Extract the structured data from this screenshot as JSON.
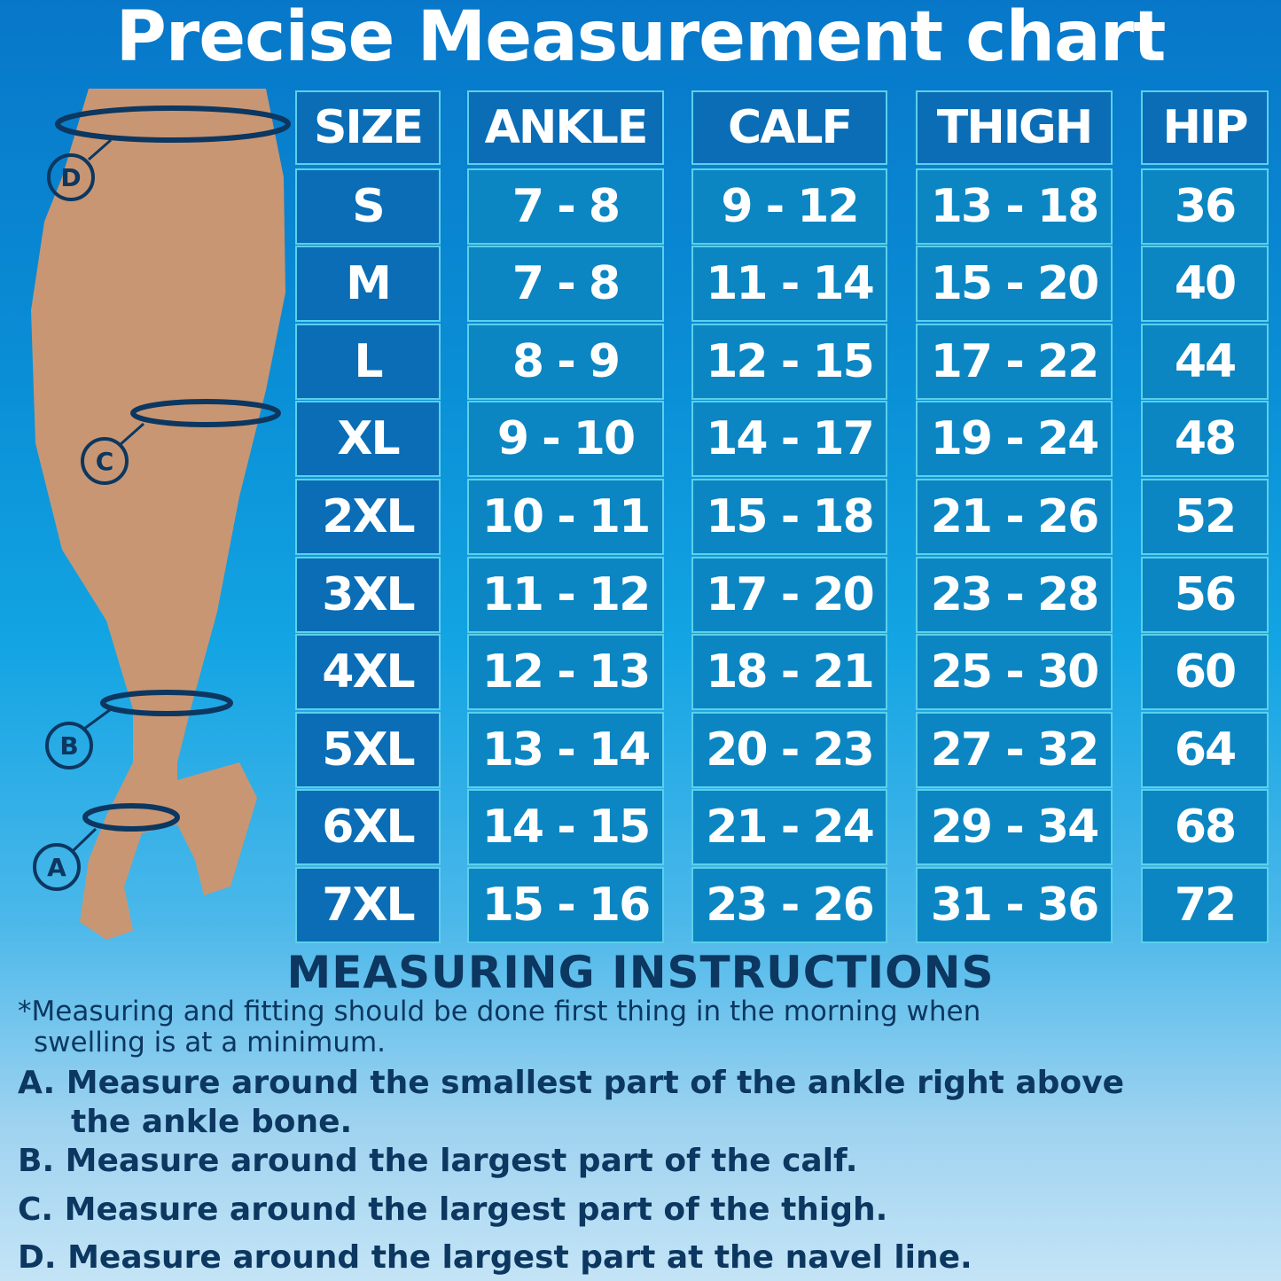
{
  "title": "Precise Measurement chart",
  "table": {
    "headers": [
      "SIZE",
      "ANKLE",
      "CALF",
      "THIGH",
      "HIP"
    ],
    "rows": [
      [
        "S",
        "7 - 8",
        "9 - 12",
        "13 - 18",
        "36"
      ],
      [
        "M",
        "7 - 8",
        "11 - 14",
        "15 - 20",
        "40"
      ],
      [
        "L",
        "8 - 9",
        "12 - 15",
        "17 - 22",
        "44"
      ],
      [
        "XL",
        "9 - 10",
        "14 - 17",
        "19 - 24",
        "48"
      ],
      [
        "2XL",
        "10 - 11",
        "15 - 18",
        "21 - 26",
        "52"
      ],
      [
        "3XL",
        "11 - 12",
        "17 - 20",
        "23 - 28",
        "56"
      ],
      [
        "4XL",
        "12 - 13",
        "18 - 21",
        "25 - 30",
        "60"
      ],
      [
        "5XL",
        "13 - 14",
        "20 - 23",
        "27 - 32",
        "64"
      ],
      [
        "6XL",
        "14 - 15",
        "21 - 24",
        "29 - 34",
        "68"
      ],
      [
        "7XL",
        "15 - 16",
        "23 - 26",
        "31 - 36",
        "72"
      ]
    ]
  },
  "markers": [
    "D",
    "C",
    "B",
    "A"
  ],
  "instructions": {
    "title": "MEASURING INSTRUCTIONS",
    "note_line1": "*Measuring and fitting should be done first thing in the morning when",
    "note_line2": "swelling is at a minimum.",
    "a_line1": "A. Measure around the smallest part of the ankle right above",
    "a_line2": "the ankle bone.",
    "b": "B. Measure around the largest part of the calf.",
    "c": "C. Measure around the largest part of the thigh.",
    "d": "D. Measure around the largest part at the navel line."
  },
  "colors": {
    "cell_header": "#0a6db6",
    "cell_value": "#0b86c2",
    "border": "#5cd0ea",
    "text_dark": "#0c3760"
  }
}
